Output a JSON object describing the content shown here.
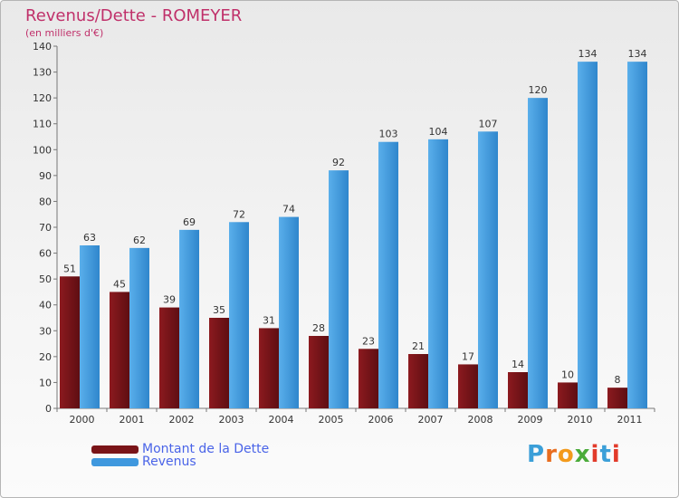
{
  "chart_data": {
    "type": "bar",
    "title": "Revenus/Dette - ROMEYER",
    "subtitle": "(en milliers d'€)",
    "categories": [
      "2000",
      "2001",
      "2002",
      "2003",
      "2004",
      "2005",
      "2006",
      "2007",
      "2008",
      "2009",
      "2010",
      "2011"
    ],
    "series": [
      {
        "name": "Montant de la Dette",
        "color": "#7a1418",
        "values": [
          51,
          45,
          39,
          35,
          31,
          28,
          23,
          21,
          17,
          14,
          10,
          8
        ]
      },
      {
        "name": "Revenus",
        "color": "#3f98de",
        "values": [
          63,
          62,
          69,
          72,
          74,
          92,
          103,
          104,
          107,
          120,
          134,
          134
        ]
      }
    ],
    "ylim": [
      0,
      140
    ],
    "yticks": [
      0,
      10,
      20,
      30,
      40,
      50,
      60,
      70,
      80,
      90,
      100,
      110,
      120,
      130,
      140
    ],
    "grid": false,
    "legend_position": "bottom-left"
  },
  "legend": {
    "items": [
      {
        "label": "Montant de la Dette",
        "color": "#7a1418"
      },
      {
        "label": "Revenus",
        "color": "#3f98de"
      }
    ]
  },
  "logo": {
    "text": "Proxiti",
    "letter_colors": [
      "#3b9fd8",
      "#e86d1f",
      "#f39a1c",
      "#4bab3a",
      "#e23b2b",
      "#3b9fd8",
      "#e23b2b"
    ]
  }
}
